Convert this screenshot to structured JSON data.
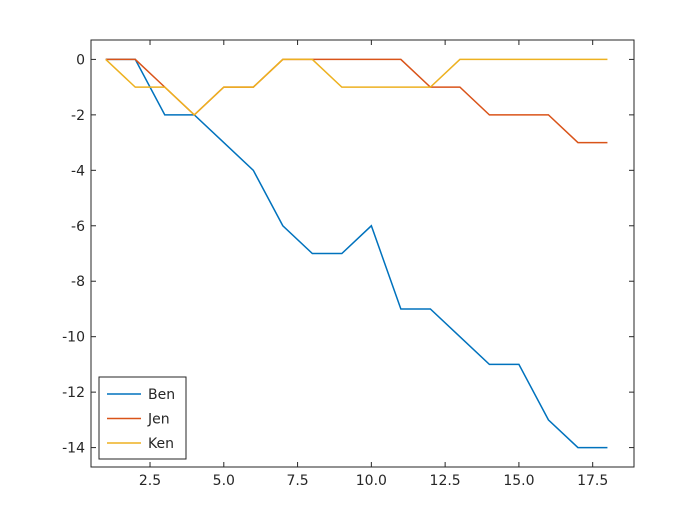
{
  "chart_data": {
    "type": "line",
    "title": "",
    "xlabel": "",
    "ylabel": "",
    "xlim": [
      0.5,
      18.9
    ],
    "ylim": [
      -14.7,
      0.7
    ],
    "xticks": [
      2.5,
      5.0,
      7.5,
      10.0,
      12.5,
      15.0,
      17.5
    ],
    "xtick_labels": [
      "2.5",
      "5.0",
      "7.5",
      "10.0",
      "12.5",
      "15.0",
      "17.5"
    ],
    "yticks": [
      0,
      -2,
      -4,
      -6,
      -8,
      -10,
      -12,
      -14
    ],
    "ytick_labels": [
      "0",
      "-2",
      "-4",
      "-6",
      "-8",
      "-10",
      "-12",
      "-14"
    ],
    "grid": false,
    "legend_position": "lower-left",
    "x": [
      1,
      2,
      3,
      4,
      5,
      6,
      7,
      8,
      9,
      10,
      11,
      12,
      13,
      14,
      15,
      16,
      17,
      18
    ],
    "series": [
      {
        "name": "Ben",
        "color": "#0072BD",
        "values": [
          0,
          0,
          -2,
          -2,
          -3,
          -4,
          -6,
          -7,
          -7,
          -6,
          -9,
          -9,
          -10,
          -11,
          -11,
          -13,
          -14,
          -14
        ]
      },
      {
        "name": "Jen",
        "color": "#D95319",
        "values": [
          0,
          0,
          -1,
          -2,
          -1,
          -1,
          0,
          0,
          0,
          0,
          0,
          -1,
          -1,
          -2,
          -2,
          -2,
          -3,
          -3
        ]
      },
      {
        "name": "Ken",
        "color": "#EDB120",
        "values": [
          0,
          -1,
          -1,
          -2,
          -1,
          -1,
          0,
          0,
          -1,
          -1,
          -1,
          -1,
          0,
          0,
          0,
          0,
          0,
          0
        ]
      }
    ]
  }
}
